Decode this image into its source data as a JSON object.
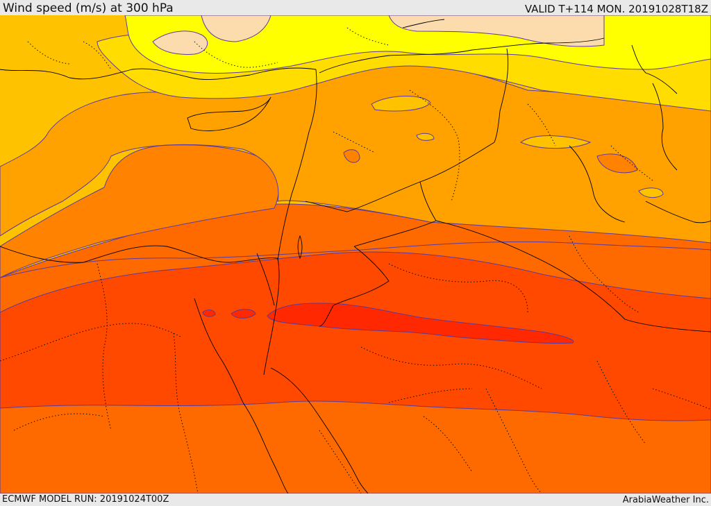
{
  "header": {
    "title": "Wind speed (m/s) at 300 hPa",
    "valid": "VALID T+114 MON. 20191028T18Z"
  },
  "footer": {
    "model_run": "ECMWF MODEL RUN: 20191024T00Z",
    "credit": "ArabiaWeather Inc."
  },
  "map": {
    "field": "wind speed",
    "level_hPa": 300,
    "units": "m/s",
    "color_bands": [
      {
        "name": "lightest",
        "color": "#fcdcac"
      },
      {
        "name": "yellow",
        "color": "#ffff00"
      },
      {
        "name": "gold",
        "color": "#ffdd00"
      },
      {
        "name": "amber",
        "color": "#ffc200"
      },
      {
        "name": "orange-light",
        "color": "#ffa200"
      },
      {
        "name": "orange",
        "color": "#ff8200"
      },
      {
        "name": "orange-dark",
        "color": "#ff6a00"
      },
      {
        "name": "red-orange",
        "color": "#ff4800"
      },
      {
        "name": "red",
        "color": "#ff2800"
      }
    ],
    "contour_color": "#5a3a9a",
    "border_color": "#000000"
  }
}
